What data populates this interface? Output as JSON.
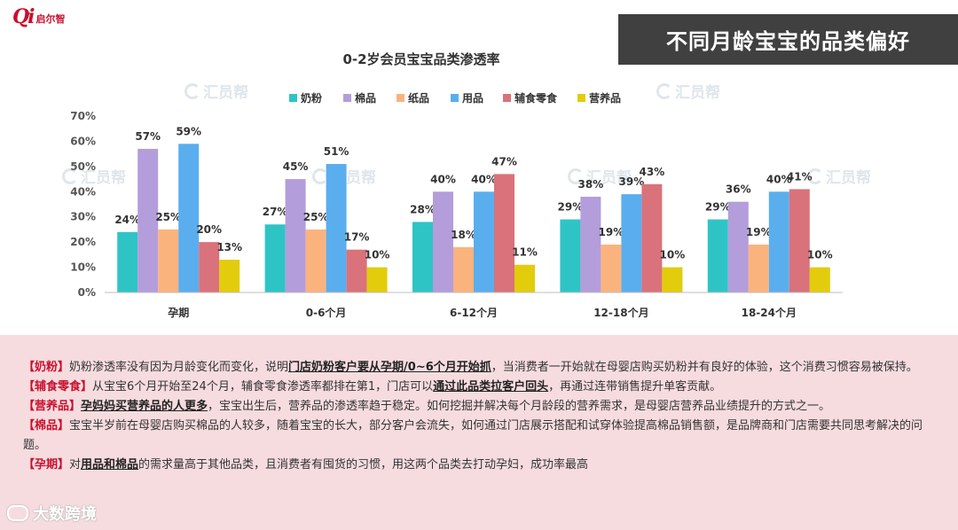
{
  "header": {
    "logo_mark": "Qi",
    "logo_text": "启尔智",
    "banner_title": "不同月龄宝宝的品类偏好"
  },
  "watermark_text": "汇员帮",
  "chart_data": {
    "type": "bar",
    "title": "0-2岁会员宝宝品类渗透率",
    "categories": [
      "孕期",
      "0-6个月",
      "6-12个月",
      "12-18个月",
      "18-24个月"
    ],
    "series": [
      {
        "name": "奶粉",
        "color": "#2ec4c6",
        "values": [
          24,
          27,
          28,
          29,
          29
        ]
      },
      {
        "name": "棉品",
        "color": "#b39ddb",
        "values": [
          57,
          45,
          40,
          38,
          36
        ]
      },
      {
        "name": "纸品",
        "color": "#fbb37d",
        "values": [
          25,
          25,
          18,
          19,
          19
        ]
      },
      {
        "name": "用品",
        "color": "#5aaeee",
        "values": [
          59,
          51,
          40,
          39,
          40
        ]
      },
      {
        "name": "辅食零食",
        "color": "#d9727a",
        "values": [
          20,
          17,
          47,
          43,
          41
        ]
      },
      {
        "name": "营养品",
        "color": "#e2cc0c",
        "values": [
          13,
          10,
          11,
          10,
          10
        ]
      }
    ],
    "yticks": [
      "0%",
      "10%",
      "20%",
      "30%",
      "40%",
      "50%",
      "60%",
      "70%"
    ],
    "ylim": [
      0,
      70
    ],
    "value_suffix": "%",
    "legend": "top",
    "grid": false
  },
  "notes": [
    {
      "key": "【奶粉】",
      "segments": [
        {
          "t": "奶粉渗透率没有因为月龄变化而变化，说明",
          "b": false
        },
        {
          "t": "门店奶粉客户要从孕期/0~6个月开始抓",
          "b": true
        },
        {
          "t": "，当消费者一开始就在母婴店购买奶粉并有良好的体验，这个消费习惯容易被保持。",
          "b": false
        }
      ]
    },
    {
      "key": "【辅食零食】",
      "segments": [
        {
          "t": "从宝宝6个月开始至24个月，辅食零食渗透率都排在第1，门店可以",
          "b": false
        },
        {
          "t": "通过此品类拉客户回头",
          "b": true
        },
        {
          "t": "，再通过连带销售提升单客贡献。",
          "b": false
        }
      ]
    },
    {
      "key": "【营养品】",
      "segments": [
        {
          "t": "孕妈妈买营养品的人更多",
          "b": true
        },
        {
          "t": "，宝宝出生后，营养品的渗透率趋于稳定。如何挖掘并解决每个月龄段的营养需求，是母婴店营养品业绩提升的方式之一。",
          "b": false
        }
      ]
    },
    {
      "key": "【棉品】",
      "segments": [
        {
          "t": "宝宝半岁前在母婴店购买棉品的人较多，随着宝宝的长大，部分客户会流失，如何通过门店展示搭配和试穿体验提高棉品销售额，是品牌商和门店需要共同思考解决的问题。",
          "b": false
        }
      ]
    },
    {
      "key": "【孕期】",
      "segments": [
        {
          "t": "对",
          "b": false
        },
        {
          "t": "用品和棉品",
          "b": true
        },
        {
          "t": "的需求量高于其他品类，且消费者有囤货的习惯，用这两个品类去打动孕妇，成功率最高",
          "b": false
        }
      ]
    }
  ],
  "footer": {
    "brand": "大数跨境"
  }
}
